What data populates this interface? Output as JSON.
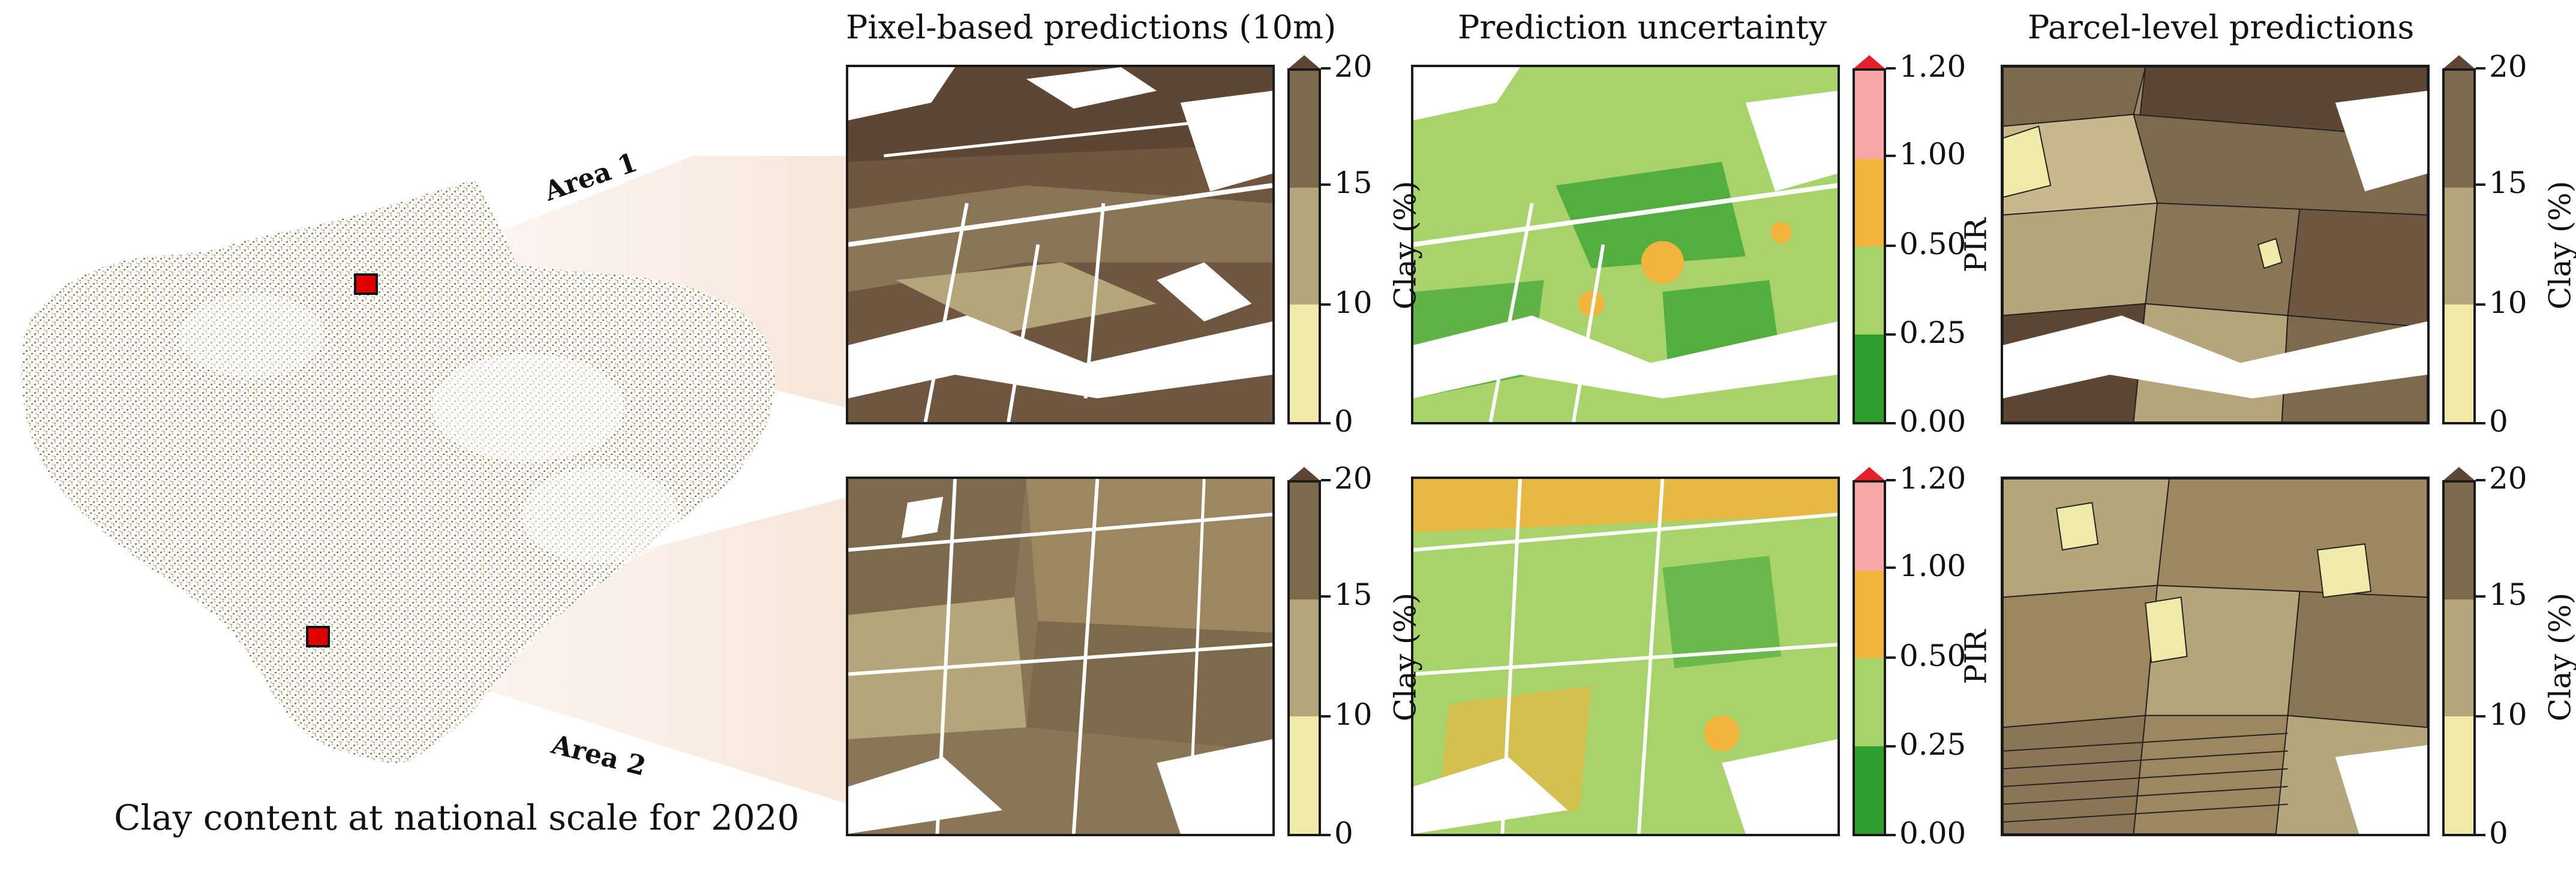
{
  "columns": {
    "pixel_title": "Pixel-based predictions (10m)",
    "uncertainty_title": "Prediction uncertainty",
    "parcel_title": "Parcel-level predictions"
  },
  "overview": {
    "caption": "Clay content at national scale for 2020",
    "area1_label": "Area 1",
    "area2_label": "Area 2",
    "marker_color": "#e10000"
  },
  "clay_colorbar": {
    "label": "Clay (%)",
    "ticks": [
      "0",
      "10",
      "15",
      "20"
    ],
    "classes": [
      {
        "range": "0-10",
        "color": "#f0eaa8"
      },
      {
        "range": "10-15",
        "color": "#b5a57a"
      },
      {
        "range": "15-20",
        "color": "#7d6a4c"
      },
      {
        "range": ">20",
        "color": "#5e4634"
      }
    ]
  },
  "pir_colorbar": {
    "label": "PIR",
    "ticks": [
      "0.00",
      "0.25",
      "0.50",
      "1.00",
      "1.20"
    ],
    "classes": [
      {
        "range": "0.00-0.25",
        "color": "#2e9e2e"
      },
      {
        "range": "0.25-0.50",
        "color": "#a8d36a"
      },
      {
        "range": "0.50-1.00",
        "color": "#f2b43c"
      },
      {
        "range": "1.00-1.20",
        "color": "#f8a8a8"
      },
      {
        "range": ">1.20",
        "color": "#e8202a"
      }
    ]
  }
}
